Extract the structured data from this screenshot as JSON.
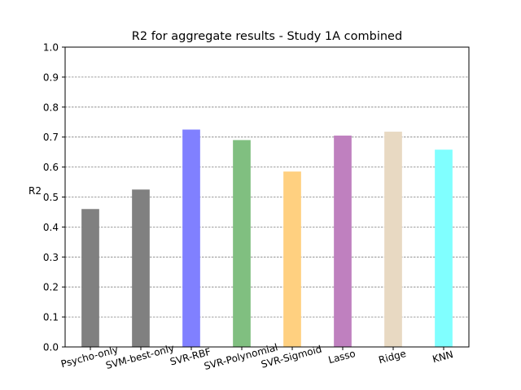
{
  "chart_data": {
    "type": "bar",
    "title": "R2 for aggregate results - Study 1A combined",
    "xlabel": "",
    "ylabel": "R2",
    "ylim": [
      0,
      1.0
    ],
    "yticks": [
      "0.0",
      "0.1",
      "0.2",
      "0.3",
      "0.4",
      "0.5",
      "0.6",
      "0.7",
      "0.8",
      "0.9",
      "1.0"
    ],
    "grid": "horizontal dashed",
    "categories": [
      "Psycho-only",
      "SVM-best-only",
      "SVR-RBF",
      "SVR-Polynomial",
      "SVR-Sigmoid",
      "Lasso",
      "Ridge",
      "KNN"
    ],
    "values": [
      0.46,
      0.525,
      0.725,
      0.69,
      0.585,
      0.705,
      0.718,
      0.658
    ],
    "colors": [
      "#808080",
      "#808080",
      "#8080ff",
      "#80bf80",
      "#ffd080",
      "#bf80bf",
      "#e8d9c2",
      "#80ffff"
    ]
  }
}
